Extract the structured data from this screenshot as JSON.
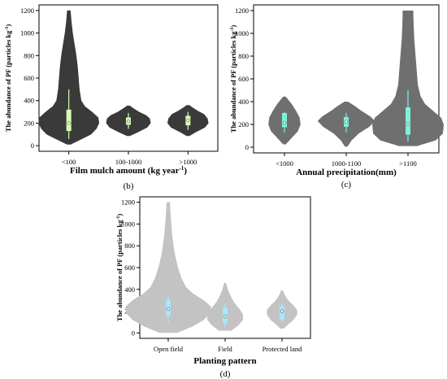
{
  "colors": {
    "b_violin": "#3a3a3a",
    "b_box": "#d6ffb0",
    "c_violin": "#6f6f6f",
    "c_box": "#7ff0dc",
    "d_violin": "#c3c3c3",
    "d_box": "#a8e6ff",
    "median_marker": "#ffffff"
  },
  "chart_data": [
    {
      "type": "violin",
      "panel_label": "(b)",
      "xlabel": "Film mulch amount (kg year",
      "xlabel_sup": "-1",
      "xlabel_tail": ")",
      "ylabel": "The abundance of PF (particles kg",
      "ylabel_sup": "-1",
      "ylabel_tail": ")",
      "ylim": [
        -50,
        1250
      ],
      "yticks": [
        0,
        200,
        400,
        600,
        800,
        1000,
        1200
      ],
      "categories": [
        "<100",
        "100-1000",
        ">1000"
      ],
      "series": [
        {
          "category": "<100",
          "min": 10,
          "q1": 130,
          "median": 200,
          "q3": 320,
          "max": 1200,
          "whisker_low": 60,
          "whisker_high": 500,
          "density": [
            [
              10,
              0.04
            ],
            [
              60,
              0.3
            ],
            [
              100,
              0.5
            ],
            [
              150,
              0.62
            ],
            [
              200,
              0.68
            ],
            [
              250,
              0.66
            ],
            [
              300,
              0.52
            ],
            [
              350,
              0.36
            ],
            [
              400,
              0.28
            ],
            [
              500,
              0.24
            ],
            [
              600,
              0.22
            ],
            [
              700,
              0.2
            ],
            [
              800,
              0.17
            ],
            [
              900,
              0.13
            ],
            [
              1000,
              0.09
            ],
            [
              1100,
              0.06
            ],
            [
              1200,
              0.04
            ]
          ]
        },
        {
          "category": "100-1000",
          "min": 85,
          "q1": 185,
          "median": 215,
          "q3": 250,
          "max": 355,
          "whisker_low": 150,
          "whisker_high": 290,
          "density": [
            [
              85,
              0.03
            ],
            [
              120,
              0.22
            ],
            [
              160,
              0.42
            ],
            [
              200,
              0.5
            ],
            [
              240,
              0.48
            ],
            [
              270,
              0.4
            ],
            [
              300,
              0.24
            ],
            [
              330,
              0.12
            ],
            [
              355,
              0.03
            ]
          ]
        },
        {
          "category": ">1000",
          "min": 85,
          "q1": 180,
          "median": 225,
          "q3": 265,
          "max": 360,
          "whisker_low": 140,
          "whisker_high": 300,
          "density": [
            [
              85,
              0.03
            ],
            [
              120,
              0.18
            ],
            [
              160,
              0.38
            ],
            [
              200,
              0.46
            ],
            [
              240,
              0.44
            ],
            [
              280,
              0.36
            ],
            [
              310,
              0.22
            ],
            [
              340,
              0.1
            ],
            [
              360,
              0.03
            ]
          ]
        }
      ]
    },
    {
      "type": "violin",
      "panel_label": "(c)",
      "xlabel": "Annual precipitation(mm)",
      "xlabel_sup": "",
      "xlabel_tail": "",
      "ylabel": "The abundance of PF (particles kg",
      "ylabel_sup": "-1",
      "ylabel_tail": ")",
      "ylim": [
        -50,
        1250
      ],
      "yticks": [
        0,
        200,
        400,
        600,
        800,
        1000,
        1200
      ],
      "categories": [
        "<1000",
        "1000-1100",
        ">1100"
      ],
      "series": [
        {
          "category": "<1000",
          "min": 25,
          "q1": 175,
          "median": 215,
          "q3": 300,
          "max": 445,
          "whisker_low": 130,
          "whisker_high": 310,
          "density": [
            [
              25,
              0.03
            ],
            [
              80,
              0.16
            ],
            [
              140,
              0.3
            ],
            [
              200,
              0.36
            ],
            [
              260,
              0.34
            ],
            [
              320,
              0.26
            ],
            [
              380,
              0.16
            ],
            [
              445,
              0.03
            ]
          ]
        },
        {
          "category": "1000-1100",
          "min": 5,
          "q1": 180,
          "median": 225,
          "q3": 265,
          "max": 400,
          "whisker_low": 130,
          "whisker_high": 300,
          "density": [
            [
              5,
              0.03
            ],
            [
              60,
              0.12
            ],
            [
              120,
              0.28
            ],
            [
              180,
              0.52
            ],
            [
              230,
              0.64
            ],
            [
              270,
              0.54
            ],
            [
              320,
              0.34
            ],
            [
              360,
              0.2
            ],
            [
              400,
              0.04
            ]
          ]
        },
        {
          "category": ">1100",
          "min": 10,
          "q1": 110,
          "median": 205,
          "q3": 350,
          "max": 1200,
          "whisker_low": 50,
          "whisker_high": 500,
          "density": [
            [
              10,
              0.2
            ],
            [
              60,
              0.62
            ],
            [
              120,
              0.78
            ],
            [
              200,
              0.8
            ],
            [
              260,
              0.74
            ],
            [
              320,
              0.56
            ],
            [
              380,
              0.38
            ],
            [
              450,
              0.28
            ],
            [
              550,
              0.22
            ],
            [
              650,
              0.2
            ],
            [
              750,
              0.18
            ],
            [
              850,
              0.16
            ],
            [
              950,
              0.14
            ],
            [
              1050,
              0.13
            ],
            [
              1150,
              0.12
            ],
            [
              1200,
              0.12
            ]
          ]
        }
      ]
    },
    {
      "type": "violin",
      "panel_label": "(d)",
      "xlabel": "Planting pattern",
      "xlabel_sup": "",
      "xlabel_tail": "",
      "ylabel": "The abundance of PF (particles kg",
      "ylabel_sup": "-1",
      "ylabel_tail": ")",
      "ylim": [
        -50,
        1250
      ],
      "yticks": [
        0,
        200,
        400,
        600,
        800,
        1000,
        1200
      ],
      "categories": [
        "Open field",
        "Field",
        "Protected land"
      ],
      "series": [
        {
          "category": "Open field",
          "min": 0,
          "q1": 160,
          "median": 220,
          "q3": 300,
          "max": 1200,
          "whisker_low": 90,
          "whisker_high": 340,
          "density": [
            [
              0,
              0.2
            ],
            [
              60,
              0.55
            ],
            [
              120,
              0.8
            ],
            [
              180,
              0.94
            ],
            [
              240,
              0.96
            ],
            [
              300,
              0.8
            ],
            [
              360,
              0.56
            ],
            [
              420,
              0.4
            ],
            [
              500,
              0.3
            ],
            [
              600,
              0.22
            ],
            [
              700,
              0.16
            ],
            [
              800,
              0.12
            ],
            [
              900,
              0.09
            ],
            [
              1000,
              0.07
            ],
            [
              1100,
              0.05
            ],
            [
              1200,
              0.04
            ]
          ]
        },
        {
          "category": "Field",
          "min": 20,
          "q1": 90,
          "median": 150,
          "q3": 230,
          "max": 460,
          "whisker_low": 50,
          "whisker_high": 270,
          "density": [
            [
              20,
              0.14
            ],
            [
              70,
              0.3
            ],
            [
              120,
              0.4
            ],
            [
              170,
              0.4
            ],
            [
              220,
              0.32
            ],
            [
              280,
              0.2
            ],
            [
              340,
              0.12
            ],
            [
              400,
              0.06
            ],
            [
              460,
              0.02
            ]
          ]
        },
        {
          "category": "Protected land",
          "min": 40,
          "q1": 120,
          "median": 200,
          "q3": 245,
          "max": 390,
          "whisker_low": 80,
          "whisker_high": 270,
          "density": [
            [
              40,
              0.04
            ],
            [
              80,
              0.14
            ],
            [
              120,
              0.26
            ],
            [
              170,
              0.34
            ],
            [
              210,
              0.34
            ],
            [
              250,
              0.26
            ],
            [
              300,
              0.14
            ],
            [
              350,
              0.06
            ],
            [
              390,
              0.02
            ]
          ]
        }
      ]
    }
  ]
}
